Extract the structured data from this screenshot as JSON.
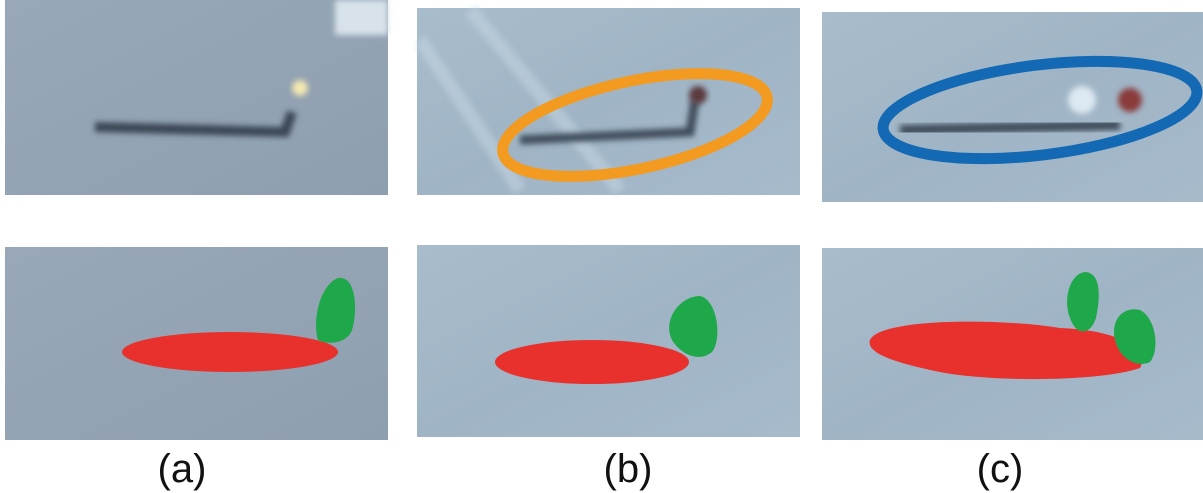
{
  "panels": {
    "labels": [
      "(a)",
      "(b)",
      "(c)"
    ]
  }
}
